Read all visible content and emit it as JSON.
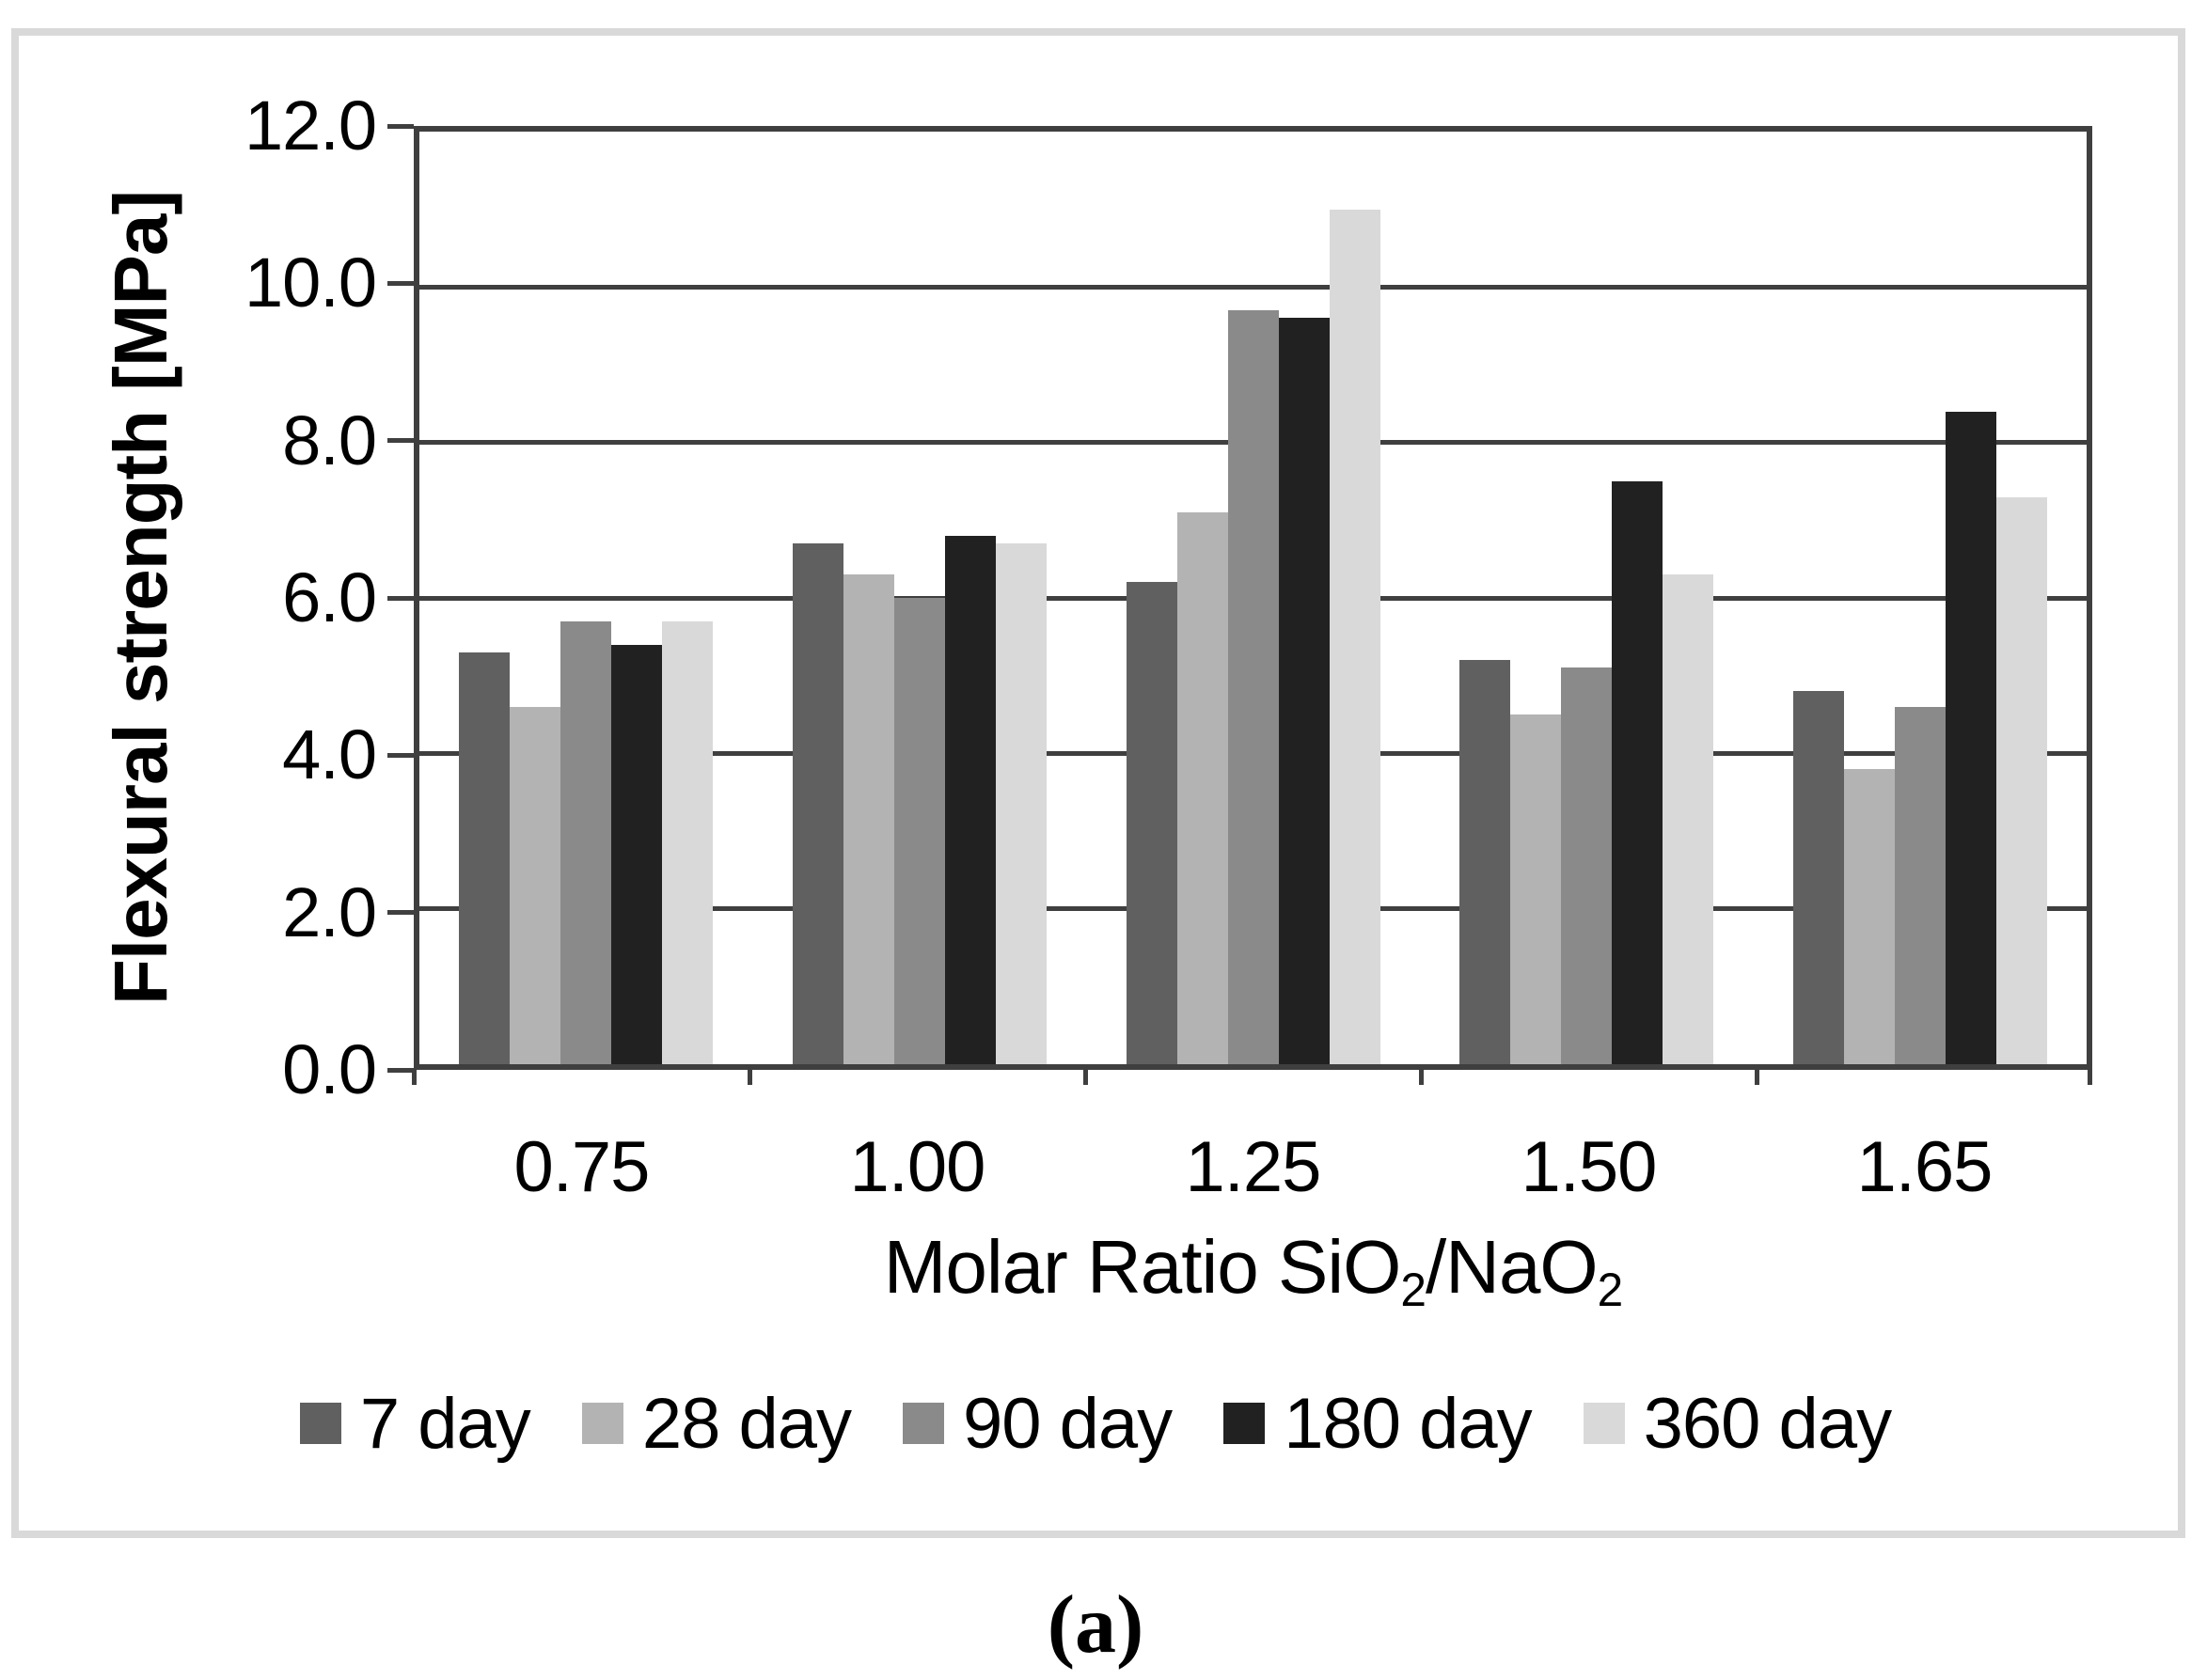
{
  "figure": {
    "caption": "(a)"
  },
  "chart_data": {
    "type": "bar",
    "title": "",
    "categories": [
      "0.75",
      "1.00",
      "1.25",
      "1.50",
      "1.65"
    ],
    "series": [
      {
        "name": "7 day",
        "color": "#606060",
        "values": [
          5.3,
          6.7,
          6.2,
          5.2,
          4.8
        ]
      },
      {
        "name": "28 day",
        "color": "#b3b3b3",
        "values": [
          4.6,
          6.3,
          7.1,
          4.5,
          3.8
        ]
      },
      {
        "name": "90 day",
        "color": "#8a8a8a",
        "values": [
          5.7,
          6.0,
          9.7,
          5.1,
          4.6
        ]
      },
      {
        "name": "180 day",
        "color": "#212121",
        "values": [
          5.4,
          6.8,
          9.6,
          7.5,
          8.4
        ]
      },
      {
        "name": "360 day",
        "color": "#d9d9d9",
        "values": [
          5.7,
          6.7,
          11.0,
          6.3,
          7.3
        ]
      }
    ],
    "xlabel": {
      "p1": "Molar Ratio SiO",
      "s1": "2",
      "p2": "/NaO",
      "s2": "2",
      "plain": "Molar Ratio SiO2/NaO2"
    },
    "ylabel": "Flexural strength [MPa]",
    "yticks": [
      "12.0",
      "10.0",
      "8.0",
      "6.0",
      "4.0",
      "2.0",
      "0.0"
    ],
    "ylim": [
      0,
      12
    ],
    "grid": true,
    "legend_position": "bottom",
    "frame_color": "#3f3f3f",
    "outer_border_color": "#d9d9d9"
  }
}
